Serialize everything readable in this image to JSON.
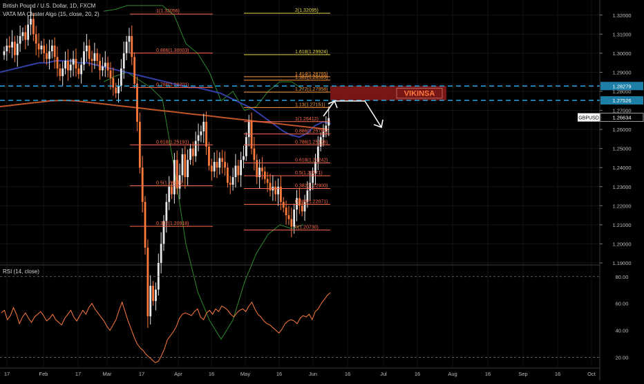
{
  "header": {
    "symbol_line": "British Pound / U.S. Dollar, 1D, FXCM",
    "indicator_line": "VATA MA Cluster Algo (15, close, 20, 2)"
  },
  "rsi": {
    "title": "RSI (14, close)"
  },
  "watermark": "VIKINSA",
  "colors": {
    "background": "#000000",
    "up_candle": "#e8e8e8",
    "down_candle": "#ff7a3c",
    "zone_fill": "#8b1a1a",
    "zone_label": "#ff7a3c",
    "dashed_level": "#29b6f6",
    "rsi_line": "#ff7a3c",
    "ma_blue": "#3340a8",
    "ma_orange": "#c0552a",
    "ma_green": "#2e8a2e",
    "fib_red": "#ff6a4a",
    "fib_yellow": "#e6d84a",
    "fib_orange": "#ff9a3a"
  },
  "chart_data": [
    {
      "type": "candlestick",
      "symbol": "GBPUSD",
      "timeframe": "1D",
      "ylim": [
        1.19,
        1.325
      ],
      "price_ticks": [
        "1.32000",
        "1.31000",
        "1.30000",
        "1.29000",
        "1.28000",
        "1.27000",
        "1.26000",
        "1.25000",
        "1.24000",
        "1.23000",
        "1.22000",
        "1.21000",
        "1.20000",
        "1.19000"
      ],
      "x_ticks": [
        "17",
        "Feb",
        "17",
        "Mar",
        "17",
        "Apr",
        "16",
        "May",
        "16",
        "Jun",
        "16",
        "Jul",
        "16",
        "Aug",
        "16",
        "Sep",
        "16",
        "Oct"
      ],
      "current_price": {
        "symbol": "GBPUSD",
        "value": "1.26634"
      },
      "levels": [
        {
          "value": "1.28279",
          "style": "dashed"
        },
        {
          "value": "1.27526",
          "style": "dashed"
        }
      ],
      "zone": {
        "label": "VIKINSA",
        "from": 1.2753,
        "to": 1.2828
      },
      "fib_left": [
        {
          "label": "0.886(1.30003)",
          "value": 1.30003
        },
        {
          "label": "0.786(1.28201)",
          "value": 1.28201
        },
        {
          "label": "0.618(1.25191)",
          "value": 1.25191
        },
        {
          "label": "0.382(1.20918)",
          "value": 1.20918
        },
        {
          "label": "0.5(1.23045)",
          "value": 1.23045
        },
        {
          "label": "1(1.32056)",
          "value": 1.32056
        }
      ],
      "fib_right": [
        {
          "label": "2(1.32095)",
          "value": 1.32095
        },
        {
          "label": "1.618(1.29924)",
          "value": 1.29924
        },
        {
          "label": "1.414(1.28765)",
          "value": 1.28765
        },
        {
          "label": "1.382(1.28583)",
          "value": 1.28583
        },
        {
          "label": "1.272(1.27958)",
          "value": 1.27958
        },
        {
          "label": "1.13(1.27151)",
          "value": 1.27151
        },
        {
          "label": "1(1.26412)",
          "value": 1.26412
        },
        {
          "label": "0.886(1.25764)",
          "value": 1.25764
        },
        {
          "label": "0.786(1.25196)",
          "value": 1.25196
        },
        {
          "label": "0.618(1.24242)",
          "value": 1.24242
        },
        {
          "label": "0.5(1.23571)",
          "value": 1.23571
        },
        {
          "label": "0.382(1.22900)",
          "value": 1.229
        },
        {
          "label": "0.236(1.22071)",
          "value": 1.22071
        },
        {
          "label": "0(1.20730)",
          "value": 1.2073
        }
      ],
      "closes": [
        1.301,
        1.304,
        1.303,
        1.306,
        1.299,
        1.305,
        1.309,
        1.311,
        1.307,
        1.315,
        1.318,
        1.31,
        1.305,
        1.302,
        1.304,
        1.3,
        1.297,
        1.301,
        1.304,
        1.298,
        1.292,
        1.288,
        1.292,
        1.296,
        1.291,
        1.294,
        1.297,
        1.292,
        1.289,
        1.294,
        1.301,
        1.304,
        1.297,
        1.296,
        1.3,
        1.296,
        1.291,
        1.293,
        1.295,
        1.291,
        1.287,
        1.282,
        1.279,
        1.283,
        1.292,
        1.3,
        1.306,
        1.309,
        1.298,
        1.284,
        1.264,
        1.24,
        1.222,
        1.198,
        1.162,
        1.178,
        1.17,
        1.176,
        1.19,
        1.2,
        1.212,
        1.222,
        1.23,
        1.226,
        1.244,
        1.229,
        1.236,
        1.247,
        1.235,
        1.244,
        1.25,
        1.246,
        1.254,
        1.257,
        1.259,
        1.264,
        1.251,
        1.241,
        1.238,
        1.243,
        1.24,
        1.245,
        1.243,
        1.24,
        1.232,
        1.231,
        1.235,
        1.241,
        1.236,
        1.244,
        1.246,
        1.256,
        1.264,
        1.25,
        1.244,
        1.235,
        1.24,
        1.238,
        1.234,
        1.232,
        1.228,
        1.23,
        1.226,
        1.23,
        1.222,
        1.219,
        1.215,
        1.213,
        1.209,
        1.218,
        1.224,
        1.22,
        1.217,
        1.222,
        1.228,
        1.232,
        1.237,
        1.243,
        1.251,
        1.256,
        1.259,
        1.262,
        1.266
      ],
      "ma_blue": [
        1.29,
        1.291,
        1.292,
        1.293,
        1.294,
        1.295,
        1.295,
        1.296,
        1.296,
        1.296,
        1.295,
        1.295,
        1.294,
        1.293,
        1.292,
        1.291,
        1.29,
        1.289,
        1.288,
        1.287,
        1.286,
        1.285,
        1.284,
        1.283,
        1.282,
        1.282,
        1.281,
        1.28,
        1.279,
        1.277,
        1.275,
        1.273,
        1.271,
        1.268,
        1.265,
        1.262,
        1.259,
        1.257,
        1.256,
        1.258,
        1.262,
        1.264,
        1.263
      ],
      "ma_orange": [
        1.272,
        1.2725,
        1.273,
        1.2735,
        1.274,
        1.2745,
        1.275,
        1.2752,
        1.2752,
        1.275,
        1.2745,
        1.274,
        1.2735,
        1.273,
        1.2725,
        1.272,
        1.2715,
        1.271,
        1.2705,
        1.27,
        1.2695,
        1.269,
        1.2685,
        1.268,
        1.2675,
        1.267,
        1.2665,
        1.266,
        1.2655,
        1.265,
        1.2645,
        1.264,
        1.2635,
        1.263,
        1.2625,
        1.262,
        1.2615,
        1.261,
        1.2605,
        1.26
      ],
      "ma_green_upper": [
        1.322,
        1.323,
        1.325,
        1.325,
        1.325,
        1.325,
        1.32,
        1.305,
        1.3,
        1.29,
        1.275,
        1.28,
        1.27,
        1.272,
        1.28,
        1.285,
        1.285,
        1.281
      ],
      "ma_green_lower": [
        1.285,
        1.288,
        1.29,
        1.286,
        1.282,
        1.276,
        1.24,
        1.2,
        1.175,
        1.16,
        1.15,
        1.16,
        1.18,
        1.195,
        1.205,
        1.21,
        1.208,
        1.21
      ]
    },
    {
      "type": "line",
      "title": "RSI (14, close)",
      "ylim": [
        13,
        84
      ],
      "ticks": [
        "80.00",
        "60.00",
        "40.00",
        "20.00"
      ],
      "values": [
        53,
        55,
        48,
        51,
        57,
        52,
        45,
        50,
        53,
        49,
        46,
        50,
        52,
        54,
        51,
        47,
        49,
        52,
        48,
        46,
        44,
        49,
        52,
        55,
        50,
        47,
        51,
        55,
        52,
        57,
        60,
        56,
        53,
        50,
        47,
        43,
        40,
        44,
        48,
        55,
        61,
        54,
        47,
        41,
        35,
        30,
        27,
        25,
        22,
        20,
        18,
        16,
        17,
        21,
        26,
        33,
        36,
        39,
        43,
        49,
        52,
        53,
        52,
        51,
        54,
        56,
        50,
        48,
        53,
        55,
        52,
        56,
        54,
        58,
        57,
        55,
        52,
        50,
        53,
        55,
        56,
        54,
        58,
        61,
        56,
        52,
        50,
        47,
        45,
        44,
        42,
        40,
        38,
        41,
        45,
        47,
        48,
        47,
        45,
        49,
        51,
        50,
        52,
        48,
        54,
        56,
        60,
        63,
        66,
        68
      ]
    }
  ]
}
